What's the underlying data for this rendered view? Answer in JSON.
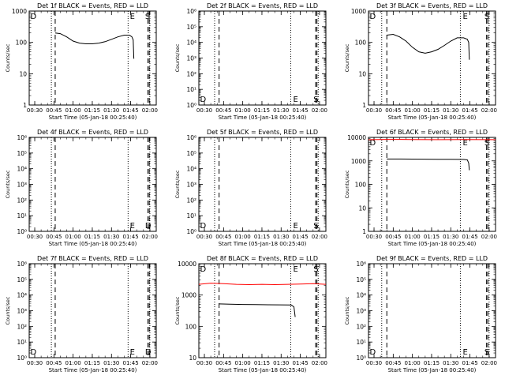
{
  "colors": {
    "background": "#ffffff",
    "axes": "#000000",
    "events": "#000000",
    "lld": "#ff0000"
  },
  "x_ticks": [
    "00:30",
    "00:45",
    "01:00",
    "01:15",
    "01:30",
    "01:45",
    "02:00"
  ],
  "xlabel": "Start Time (05-Jan-18 00:25:40)",
  "ylabel": "Counts/sec",
  "chart_data": [
    {
      "type": "line",
      "title": "Det 1f BLACK = Events, RED = LLD",
      "xlabel": "Start Time (05-Jan-18 00:25:40)",
      "ylabel": "Counts/sec",
      "xlim": [
        "00:25:40",
        "02:05:00"
      ],
      "ylim": [
        1,
        1000
      ],
      "yscale": "log",
      "ytick_labels": [
        "1",
        "10",
        "100",
        "1000"
      ],
      "x_ticks": [
        "00:30",
        "00:45",
        "01:00",
        "01:15",
        "01:30",
        "01:45",
        "02:00"
      ],
      "markers": {
        "D_start": "00:26:00",
        "dotted_1": "00:43:00",
        "dashed_1": "00:46:00",
        "dotted_2": "01:43:00",
        "E": "01:45:00",
        "dashed_2": "01:58:30",
        "dashed_3": "01:59:30",
        "S": "02:00:00"
      },
      "marker_labels": [
        "D",
        "E",
        "S"
      ],
      "series": [
        {
          "color": "black",
          "x": [
            "00:46:00",
            "00:50:00",
            "00:55:00",
            "01:00:00",
            "01:05:00",
            "01:10:00",
            "01:15:00",
            "01:20:00",
            "01:25:00",
            "01:30:00",
            "01:35:00",
            "01:40:00",
            "01:44:00",
            "01:46:00",
            "01:47:00",
            "01:47:30"
          ],
          "y": [
            200,
            190,
            150,
            110,
            95,
            90,
            90,
            95,
            105,
            125,
            150,
            170,
            170,
            150,
            120,
            30
          ]
        }
      ]
    },
    {
      "type": "line",
      "title": "Det 2f BLACK = Events, RED = LLD",
      "xlabel": "Start Time (05-Jan-18 00:25:40)",
      "ylabel": "Counts/sec",
      "xlim": [
        "00:25:40",
        "02:05:00"
      ],
      "ylim": [
        1,
        1000000
      ],
      "yscale": "log",
      "ytick_labels": [
        "10⁰",
        "10¹",
        "10²",
        "10³",
        "10⁴",
        "10⁵",
        "10⁶"
      ],
      "x_ticks": [
        "00:30",
        "00:45",
        "01:00",
        "01:15",
        "01:30",
        "01:45",
        "02:00"
      ],
      "markers": {
        "D_start": "00:26:00",
        "dotted_1": "00:38:00",
        "dashed_1": "00:41:30",
        "dotted_2": "01:37:30",
        "E": "01:40:00",
        "dashed_2": "01:57:00",
        "dashed_3": "01:58:00",
        "S": "01:59:00"
      },
      "marker_labels": [
        "D",
        "E",
        "S"
      ],
      "series": []
    },
    {
      "type": "line",
      "title": "Det 3f BLACK = Events, RED = LLD",
      "xlabel": "Start Time (05-Jan-18 00:25:40)",
      "ylabel": "Counts/sec",
      "xlim": [
        "00:25:40",
        "02:05:00"
      ],
      "ylim": [
        1,
        1000
      ],
      "yscale": "log",
      "ytick_labels": [
        "1",
        "10",
        "100",
        "1000"
      ],
      "x_ticks": [
        "00:30",
        "00:45",
        "01:00",
        "01:15",
        "01:30",
        "01:45",
        "02:00"
      ],
      "markers": {
        "D_start": "00:26:00",
        "dotted_1": "00:36:00",
        "dashed_1": "00:40:00",
        "dotted_2": "01:37:30",
        "E": "01:40:00",
        "dashed_2": "01:58:00",
        "dashed_3": "01:59:00",
        "S": "02:00:00"
      },
      "marker_labels": [
        "D",
        "E",
        "S"
      ],
      "series": [
        {
          "color": "black",
          "x": [
            "00:40:00",
            "00:45:00",
            "00:50:00",
            "00:55:00",
            "01:00:00",
            "01:05:00",
            "01:10:00",
            "01:15:00",
            "01:20:00",
            "01:25:00",
            "01:30:00",
            "01:35:00",
            "01:40:00",
            "01:43:00",
            "01:44:00",
            "01:44:30"
          ],
          "y": [
            170,
            180,
            150,
            110,
            70,
            50,
            45,
            50,
            60,
            80,
            110,
            140,
            140,
            125,
            100,
            28
          ]
        }
      ]
    },
    {
      "type": "line",
      "title": "Det 4f BLACK = Events, RED = LLD",
      "xlabel": "Start Time (05-Jan-18 00:25:40)",
      "ylabel": "Counts/sec",
      "xlim": [
        "00:25:40",
        "02:05:00"
      ],
      "ylim": [
        1,
        1000000
      ],
      "yscale": "log",
      "ytick_labels": [
        "10⁰",
        "10¹",
        "10²",
        "10³",
        "10⁴",
        "10⁵",
        "10⁶"
      ],
      "x_ticks": [
        "00:30",
        "00:45",
        "01:00",
        "01:15",
        "01:30",
        "01:45",
        "02:00"
      ],
      "markers": {
        "D_start": "00:26:00",
        "dotted_1": "00:43:00",
        "dashed_1": "00:46:00",
        "dotted_2": "01:43:00",
        "E": "01:45:00",
        "dashed_2": "01:58:30",
        "dashed_3": "01:59:30",
        "S": "02:00:00"
      },
      "marker_labels": [
        "E",
        "D"
      ],
      "series": []
    },
    {
      "type": "line",
      "title": "Det 5f BLACK = Events, RED = LLD",
      "xlabel": "Start Time (05-Jan-18 00:25:40)",
      "ylabel": "Counts/sec",
      "xlim": [
        "00:25:40",
        "02:05:00"
      ],
      "ylim": [
        1,
        1000000
      ],
      "yscale": "log",
      "ytick_labels": [
        "10⁰",
        "10¹",
        "10²",
        "10³",
        "10⁴",
        "10⁵",
        "10⁶"
      ],
      "x_ticks": [
        "00:30",
        "00:45",
        "01:00",
        "01:15",
        "01:30",
        "01:45",
        "02:00"
      ],
      "markers": {
        "D_start": "00:26:00",
        "dotted_1": "00:38:00",
        "dashed_1": "00:41:30",
        "dotted_2": "01:37:30",
        "E": "01:40:00",
        "dashed_2": "01:57:00",
        "dashed_3": "01:58:00",
        "S": "01:59:00"
      },
      "marker_labels": [
        "D",
        "E",
        "S"
      ],
      "series": []
    },
    {
      "type": "line",
      "title": "Det 6f BLACK = Events, RED = LLD",
      "xlabel": "Start Time (05-Jan-18 00:25:40)",
      "ylabel": "Counts/sec",
      "xlim": [
        "00:25:40",
        "02:05:00"
      ],
      "ylim": [
        1,
        10000
      ],
      "yscale": "log",
      "ytick_labels": [
        "1",
        "10",
        "100",
        "1000",
        "10000"
      ],
      "x_ticks": [
        "00:30",
        "00:45",
        "01:00",
        "01:15",
        "01:30",
        "01:45",
        "02:00"
      ],
      "markers": {
        "D_start": "00:26:00",
        "dotted_1": "00:36:00",
        "dashed_1": "00:40:00",
        "dotted_2": "01:37:30",
        "E": "01:40:00",
        "dashed_2": "01:58:00",
        "dashed_3": "01:59:00",
        "S": "02:00:00"
      },
      "marker_labels": [
        "D",
        "E",
        "S"
      ],
      "series": [
        {
          "color": "red",
          "x": [
            "00:25:40",
            "00:40:00",
            "01:00:00",
            "01:20:00",
            "01:40:00",
            "02:05:00"
          ],
          "y": [
            8000,
            8200,
            8100,
            8000,
            8100,
            8000
          ]
        },
        {
          "color": "black",
          "x": [
            "00:40:00",
            "00:50:00",
            "01:00:00",
            "01:10:00",
            "01:20:00",
            "01:30:00",
            "01:40:00",
            "01:43:00",
            "01:44:00",
            "01:44:30"
          ],
          "y": [
            1200,
            1200,
            1190,
            1180,
            1170,
            1160,
            1150,
            1100,
            800,
            400
          ]
        }
      ]
    },
    {
      "type": "line",
      "title": "Det 7f BLACK = Events, RED = LLD",
      "xlabel": "Start Time (05-Jan-18 00:25:40)",
      "ylabel": "Counts/sec",
      "xlim": [
        "00:25:40",
        "02:05:00"
      ],
      "ylim": [
        1,
        1000000
      ],
      "yscale": "log",
      "ytick_labels": [
        "10⁰",
        "10¹",
        "10²",
        "10³",
        "10⁴",
        "10⁵",
        "10⁶"
      ],
      "x_ticks": [
        "00:30",
        "00:45",
        "01:00",
        "01:15",
        "01:30",
        "01:45",
        "02:00"
      ],
      "markers": {
        "D_start": "00:26:00",
        "dotted_1": "00:43:00",
        "dashed_1": "00:46:00",
        "dotted_2": "01:43:00",
        "E": "01:45:00",
        "dashed_2": "01:58:30",
        "dashed_3": "01:59:30",
        "S": "02:00:00"
      },
      "marker_labels": [
        "D",
        "E",
        "D"
      ],
      "series": []
    },
    {
      "type": "line",
      "title": "Det 8f BLACK = Events, RED = LLD",
      "xlabel": "Start Time (05-Jan-18 00:25:40)",
      "ylabel": "Counts/sec",
      "xlim": [
        "00:25:40",
        "02:05:00"
      ],
      "ylim": [
        10,
        10000
      ],
      "yscale": "log",
      "ytick_labels": [
        "10",
        "100",
        "1000",
        "10000"
      ],
      "x_ticks": [
        "00:30",
        "00:45",
        "01:00",
        "01:15",
        "01:30",
        "01:45",
        "02:00"
      ],
      "markers": {
        "D_start": "00:26:00",
        "dotted_1": "00:38:00",
        "dashed_1": "00:41:30",
        "dotted_2": "01:37:30",
        "E": "01:40:00",
        "dashed_2": "01:57:00",
        "dashed_3": "01:58:00",
        "S": "01:59:00"
      },
      "marker_labels": [
        "D",
        "E",
        "S"
      ],
      "series": [
        {
          "color": "red",
          "x": [
            "00:25:40",
            "00:35:00",
            "00:45:00",
            "00:55:00",
            "01:05:00",
            "01:15:00",
            "01:25:00",
            "01:35:00",
            "01:45:00",
            "01:55:00",
            "02:05:00"
          ],
          "y": [
            2200,
            2400,
            2300,
            2200,
            2150,
            2200,
            2150,
            2200,
            2250,
            2300,
            2200
          ]
        },
        {
          "color": "black",
          "x": [
            "00:41:30",
            "00:50:00",
            "01:00:00",
            "01:10:00",
            "01:20:00",
            "01:30:00",
            "01:38:00",
            "01:40:00",
            "01:41:00"
          ],
          "y": [
            520,
            510,
            500,
            495,
            490,
            485,
            480,
            420,
            200
          ]
        }
      ]
    },
    {
      "type": "line",
      "title": "Det 9f BLACK = Events, RED = LLD",
      "xlabel": "Start Time (05-Jan-18 00:25:40)",
      "ylabel": "Counts/sec",
      "xlim": [
        "00:25:40",
        "02:05:00"
      ],
      "ylim": [
        1,
        1000000
      ],
      "yscale": "log",
      "ytick_labels": [
        "10⁰",
        "10¹",
        "10²",
        "10³",
        "10⁴",
        "10⁵",
        "10⁶"
      ],
      "x_ticks": [
        "00:30",
        "00:45",
        "01:00",
        "01:15",
        "01:30",
        "01:45",
        "02:00"
      ],
      "markers": {
        "D_start": "00:26:00",
        "dotted_1": "00:36:00",
        "dashed_1": "00:40:00",
        "dotted_2": "01:37:30",
        "E": "01:40:00",
        "dashed_2": "01:58:00",
        "dashed_3": "01:59:00",
        "S": "02:00:00"
      },
      "marker_labels": [
        "D",
        "E",
        "S"
      ],
      "series": []
    }
  ]
}
